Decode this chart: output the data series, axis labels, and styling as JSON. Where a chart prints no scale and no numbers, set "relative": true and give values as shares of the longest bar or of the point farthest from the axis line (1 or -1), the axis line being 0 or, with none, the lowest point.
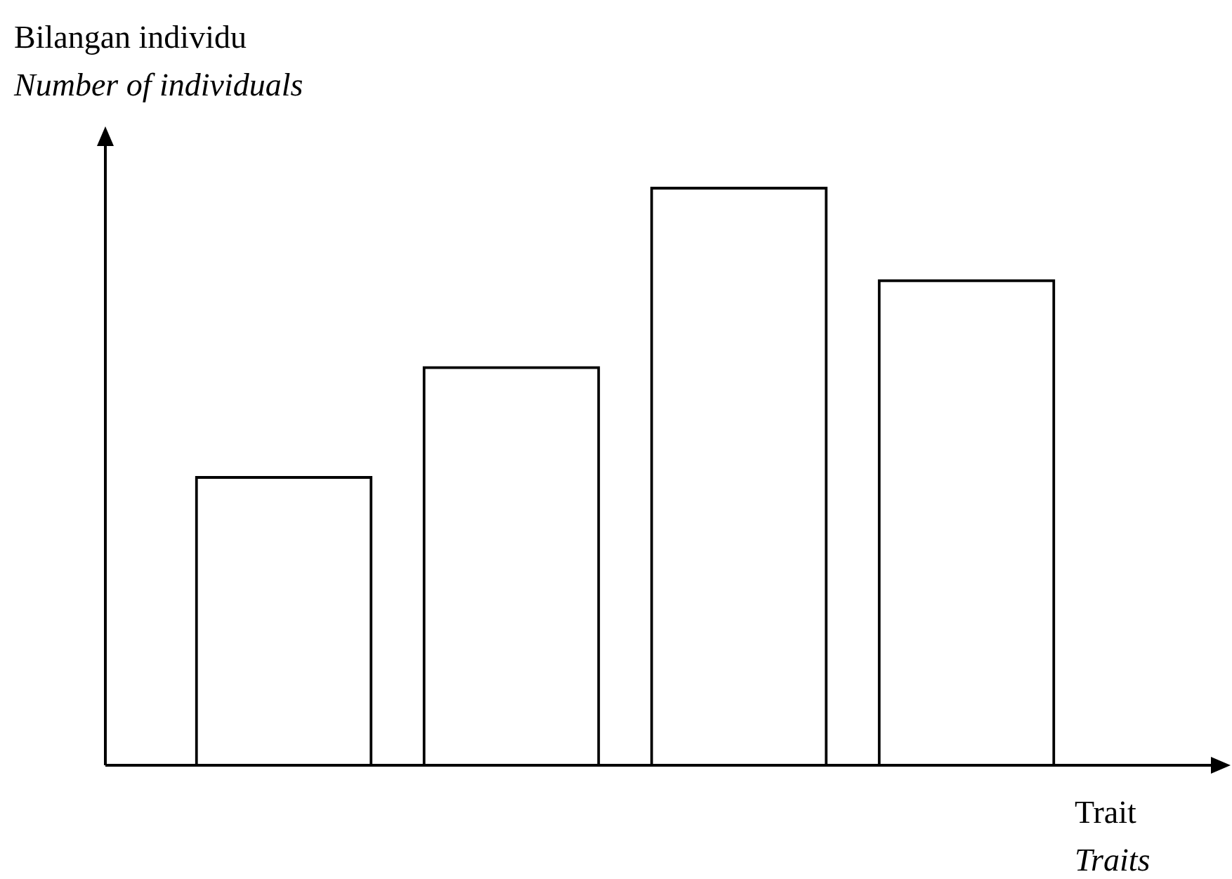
{
  "chart_data": {
    "type": "bar",
    "relative": true,
    "ylabel": "Bilangan individu\nNumber of individuals",
    "xlabel": "Trait\nTraits",
    "categories": [
      null,
      null,
      null,
      null
    ],
    "values": [
      0.5,
      0.69,
      1,
      0.84
    ],
    "color": "#000000",
    "legend": false
  }
}
